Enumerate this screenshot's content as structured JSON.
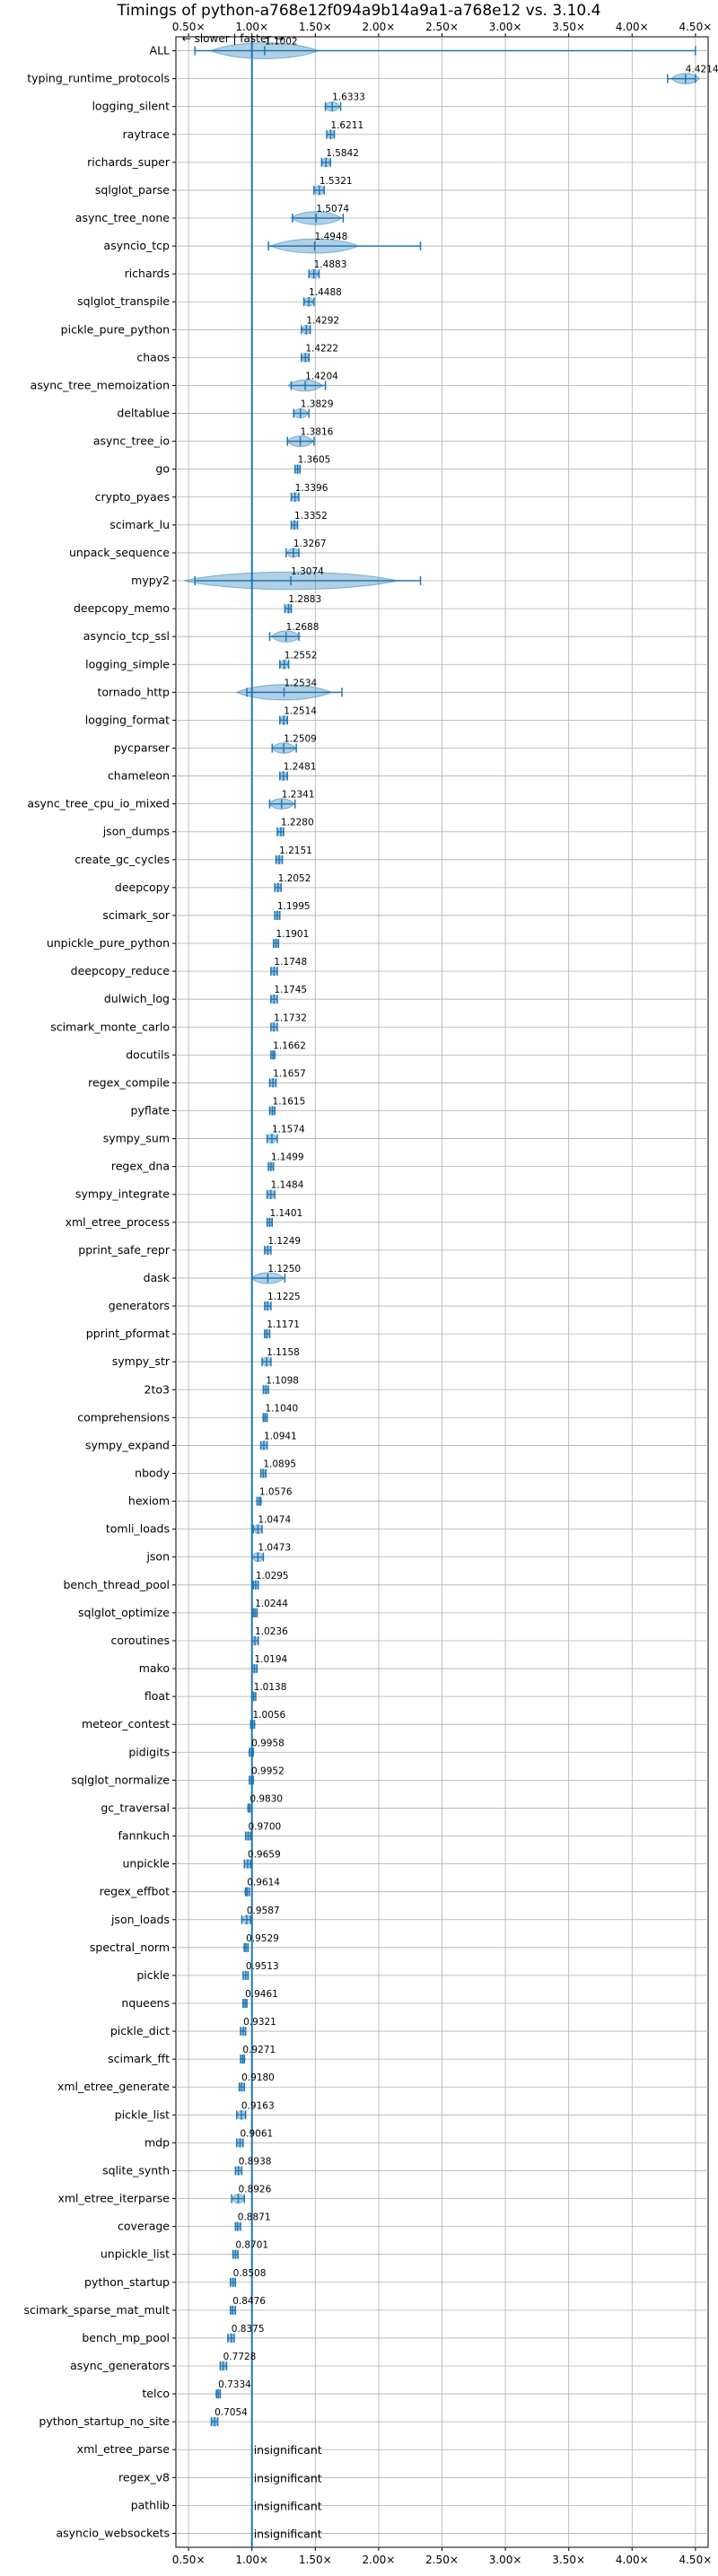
{
  "chart_data": {
    "type": "violin",
    "title": "Timings of python-a768e12f094a9b14a9a1-a768e12 vs. 3.10.4",
    "annotation": "← slower | faster →",
    "xlim": [
      0.4,
      4.6
    ],
    "xticks": [
      0.5,
      1.0,
      1.5,
      2.0,
      2.5,
      3.0,
      3.5,
      4.0,
      4.5
    ],
    "xtick_labels": [
      "0.50×",
      "1.00×",
      "1.50×",
      "2.00×",
      "2.50×",
      "3.00×",
      "3.50×",
      "4.00×",
      "4.50×"
    ],
    "grid": true,
    "series_color": "#1f77b4",
    "benchmarks": [
      {
        "name": "ALL",
        "label": "1.1002",
        "min": 0.55,
        "max": 4.5,
        "spread": 0.33
      },
      {
        "name": "typing_runtime_protocols",
        "label": "4.4214",
        "min": 4.28,
        "max": 4.5,
        "spread": 0.1
      },
      {
        "name": "logging_silent",
        "label": "1.6333",
        "min": 1.58,
        "max": 1.7,
        "spread": 0.05
      },
      {
        "name": "raytrace",
        "label": "1.6211",
        "min": 1.59,
        "max": 1.65,
        "spread": 0.03
      },
      {
        "name": "richards_super",
        "label": "1.5842",
        "min": 1.55,
        "max": 1.62,
        "spread": 0.03
      },
      {
        "name": "sqlglot_parse",
        "label": "1.5321",
        "min": 1.49,
        "max": 1.57,
        "spread": 0.04
      },
      {
        "name": "async_tree_none",
        "label": "1.5074",
        "min": 1.32,
        "max": 1.72,
        "spread": 0.2
      },
      {
        "name": "asyncio_tcp",
        "label": "1.4948",
        "min": 1.13,
        "max": 2.33,
        "spread": 0.25
      },
      {
        "name": "richards",
        "label": "1.4883",
        "min": 1.45,
        "max": 1.53,
        "spread": 0.03
      },
      {
        "name": "sqlglot_transpile",
        "label": "1.4488",
        "min": 1.41,
        "max": 1.49,
        "spread": 0.03
      },
      {
        "name": "pickle_pure_python",
        "label": "1.4292",
        "min": 1.39,
        "max": 1.46,
        "spread": 0.03
      },
      {
        "name": "chaos",
        "label": "1.4222",
        "min": 1.39,
        "max": 1.45,
        "spread": 0.03
      },
      {
        "name": "async_tree_memoization",
        "label": "1.4204",
        "min": 1.31,
        "max": 1.58,
        "spread": 0.13
      },
      {
        "name": "deltablue",
        "label": "1.3829",
        "min": 1.33,
        "max": 1.45,
        "spread": 0.05
      },
      {
        "name": "async_tree_io",
        "label": "1.3816",
        "min": 1.28,
        "max": 1.49,
        "spread": 0.1
      },
      {
        "name": "go",
        "label": "1.3605",
        "min": 1.34,
        "max": 1.38,
        "spread": 0.02
      },
      {
        "name": "crypto_pyaes",
        "label": "1.3396",
        "min": 1.31,
        "max": 1.37,
        "spread": 0.03
      },
      {
        "name": "scimark_lu",
        "label": "1.3352",
        "min": 1.31,
        "max": 1.36,
        "spread": 0.03
      },
      {
        "name": "unpack_sequence",
        "label": "1.3267",
        "min": 1.27,
        "max": 1.37,
        "spread": 0.04
      },
      {
        "name": "mypy2",
        "label": "1.3074",
        "min": 0.55,
        "max": 2.33,
        "spread": 0.75
      },
      {
        "name": "deepcopy_memo",
        "label": "1.2883",
        "min": 1.26,
        "max": 1.31,
        "spread": 0.03
      },
      {
        "name": "asyncio_tcp_ssl",
        "label": "1.2688",
        "min": 1.14,
        "max": 1.37,
        "spread": 0.12
      },
      {
        "name": "logging_simple",
        "label": "1.2552",
        "min": 1.22,
        "max": 1.29,
        "spread": 0.03
      },
      {
        "name": "tornado_http",
        "label": "1.2534",
        "min": 0.96,
        "max": 1.71,
        "spread": 0.3
      },
      {
        "name": "logging_format",
        "label": "1.2514",
        "min": 1.22,
        "max": 1.28,
        "spread": 0.03
      },
      {
        "name": "pycparser",
        "label": "1.2509",
        "min": 1.16,
        "max": 1.35,
        "spread": 0.09
      },
      {
        "name": "chameleon",
        "label": "1.2481",
        "min": 1.22,
        "max": 1.28,
        "spread": 0.03
      },
      {
        "name": "async_tree_cpu_io_mixed",
        "label": "1.2341",
        "min": 1.14,
        "max": 1.34,
        "spread": 0.1
      },
      {
        "name": "json_dumps",
        "label": "1.2280",
        "min": 1.2,
        "max": 1.25,
        "spread": 0.02
      },
      {
        "name": "create_gc_cycles",
        "label": "1.2151",
        "min": 1.19,
        "max": 1.24,
        "spread": 0.02
      },
      {
        "name": "deepcopy",
        "label": "1.2052",
        "min": 1.18,
        "max": 1.23,
        "spread": 0.02
      },
      {
        "name": "scimark_sor",
        "label": "1.1995",
        "min": 1.18,
        "max": 1.22,
        "spread": 0.02
      },
      {
        "name": "unpickle_pure_python",
        "label": "1.1901",
        "min": 1.17,
        "max": 1.21,
        "spread": 0.02
      },
      {
        "name": "deepcopy_reduce",
        "label": "1.1748",
        "min": 1.15,
        "max": 1.2,
        "spread": 0.02
      },
      {
        "name": "dulwich_log",
        "label": "1.1745",
        "min": 1.15,
        "max": 1.2,
        "spread": 0.02
      },
      {
        "name": "scimark_monte_carlo",
        "label": "1.1732",
        "min": 1.15,
        "max": 1.2,
        "spread": 0.02
      },
      {
        "name": "docutils",
        "label": "1.1662",
        "min": 1.15,
        "max": 1.18,
        "spread": 0.015
      },
      {
        "name": "regex_compile",
        "label": "1.1657",
        "min": 1.14,
        "max": 1.19,
        "spread": 0.02
      },
      {
        "name": "pyflate",
        "label": "1.1615",
        "min": 1.14,
        "max": 1.18,
        "spread": 0.02
      },
      {
        "name": "sympy_sum",
        "label": "1.1574",
        "min": 1.12,
        "max": 1.2,
        "spread": 0.04
      },
      {
        "name": "regex_dna",
        "label": "1.1499",
        "min": 1.13,
        "max": 1.17,
        "spread": 0.015
      },
      {
        "name": "sympy_integrate",
        "label": "1.1484",
        "min": 1.12,
        "max": 1.18,
        "spread": 0.03
      },
      {
        "name": "xml_etree_process",
        "label": "1.1401",
        "min": 1.12,
        "max": 1.16,
        "spread": 0.02
      },
      {
        "name": "pprint_safe_repr",
        "label": "1.1249",
        "min": 1.1,
        "max": 1.15,
        "spread": 0.02
      },
      {
        "name": "dask",
        "label": "1.1250",
        "min": 1.0,
        "max": 1.26,
        "spread": 0.12
      },
      {
        "name": "generators",
        "label": "1.1225",
        "min": 1.1,
        "max": 1.15,
        "spread": 0.02
      },
      {
        "name": "pprint_pformat",
        "label": "1.1171",
        "min": 1.1,
        "max": 1.14,
        "spread": 0.015
      },
      {
        "name": "sympy_str",
        "label": "1.1158",
        "min": 1.08,
        "max": 1.15,
        "spread": 0.03
      },
      {
        "name": "2to3",
        "label": "1.1098",
        "min": 1.09,
        "max": 1.13,
        "spread": 0.015
      },
      {
        "name": "comprehensions",
        "label": "1.1040",
        "min": 1.09,
        "max": 1.12,
        "spread": 0.015
      },
      {
        "name": "sympy_expand",
        "label": "1.0941",
        "min": 1.07,
        "max": 1.12,
        "spread": 0.02
      },
      {
        "name": "nbody",
        "label": "1.0895",
        "min": 1.07,
        "max": 1.11,
        "spread": 0.02
      },
      {
        "name": "hexiom",
        "label": "1.0576",
        "min": 1.04,
        "max": 1.07,
        "spread": 0.015
      },
      {
        "name": "tomli_loads",
        "label": "1.0474",
        "min": 1.01,
        "max": 1.08,
        "spread": 0.035
      },
      {
        "name": "json",
        "label": "1.0473",
        "min": 1.0,
        "max": 1.09,
        "spread": 0.04
      },
      {
        "name": "bench_thread_pool",
        "label": "1.0295",
        "min": 1.01,
        "max": 1.05,
        "spread": 0.015
      },
      {
        "name": "sqlglot_optimize",
        "label": "1.0244",
        "min": 1.01,
        "max": 1.04,
        "spread": 0.015
      },
      {
        "name": "coroutines",
        "label": "1.0236",
        "min": 1.0,
        "max": 1.05,
        "spread": 0.02
      },
      {
        "name": "mako",
        "label": "1.0194",
        "min": 1.0,
        "max": 1.04,
        "spread": 0.015
      },
      {
        "name": "float",
        "label": "1.0138",
        "min": 1.0,
        "max": 1.03,
        "spread": 0.015
      },
      {
        "name": "meteor_contest",
        "label": "1.0056",
        "min": 0.99,
        "max": 1.02,
        "spread": 0.01
      },
      {
        "name": "pidigits",
        "label": "0.9958",
        "min": 0.98,
        "max": 1.01,
        "spread": 0.01
      },
      {
        "name": "sqlglot_normalize",
        "label": "0.9952",
        "min": 0.98,
        "max": 1.01,
        "spread": 0.01
      },
      {
        "name": "gc_traversal",
        "label": "0.9830",
        "min": 0.97,
        "max": 1.0,
        "spread": 0.01
      },
      {
        "name": "fannkuch",
        "label": "0.9700",
        "min": 0.95,
        "max": 0.99,
        "spread": 0.015
      },
      {
        "name": "unpickle",
        "label": "0.9659",
        "min": 0.94,
        "max": 0.99,
        "spread": 0.02
      },
      {
        "name": "regex_effbot",
        "label": "0.9614",
        "min": 0.95,
        "max": 0.98,
        "spread": 0.01
      },
      {
        "name": "json_loads",
        "label": "0.9587",
        "min": 0.92,
        "max": 0.99,
        "spread": 0.03
      },
      {
        "name": "spectral_norm",
        "label": "0.9529",
        "min": 0.94,
        "max": 0.97,
        "spread": 0.01
      },
      {
        "name": "pickle",
        "label": "0.9513",
        "min": 0.93,
        "max": 0.97,
        "spread": 0.02
      },
      {
        "name": "nqueens",
        "label": "0.9461",
        "min": 0.93,
        "max": 0.96,
        "spread": 0.01
      },
      {
        "name": "pickle_dict",
        "label": "0.9321",
        "min": 0.91,
        "max": 0.95,
        "spread": 0.015
      },
      {
        "name": "scimark_fft",
        "label": "0.9271",
        "min": 0.91,
        "max": 0.94,
        "spread": 0.01
      },
      {
        "name": "xml_etree_generate",
        "label": "0.9180",
        "min": 0.9,
        "max": 0.94,
        "spread": 0.015
      },
      {
        "name": "pickle_list",
        "label": "0.9163",
        "min": 0.88,
        "max": 0.95,
        "spread": 0.03
      },
      {
        "name": "mdp",
        "label": "0.9061",
        "min": 0.88,
        "max": 0.93,
        "spread": 0.02
      },
      {
        "name": "sqlite_synth",
        "label": "0.8938",
        "min": 0.87,
        "max": 0.92,
        "spread": 0.02
      },
      {
        "name": "xml_etree_iterparse",
        "label": "0.8926",
        "min": 0.84,
        "max": 0.94,
        "spread": 0.04
      },
      {
        "name": "coverage",
        "label": "0.8871",
        "min": 0.87,
        "max": 0.91,
        "spread": 0.015
      },
      {
        "name": "unpickle_list",
        "label": "0.8701",
        "min": 0.85,
        "max": 0.89,
        "spread": 0.015
      },
      {
        "name": "python_startup",
        "label": "0.8508",
        "min": 0.83,
        "max": 0.87,
        "spread": 0.015
      },
      {
        "name": "scimark_sparse_mat_mult",
        "label": "0.8476",
        "min": 0.83,
        "max": 0.87,
        "spread": 0.01
      },
      {
        "name": "bench_mp_pool",
        "label": "0.8375",
        "min": 0.81,
        "max": 0.86,
        "spread": 0.02
      },
      {
        "name": "async_generators",
        "label": "0.7728",
        "min": 0.75,
        "max": 0.8,
        "spread": 0.02
      },
      {
        "name": "telco",
        "label": "0.7334",
        "min": 0.72,
        "max": 0.75,
        "spread": 0.01
      },
      {
        "name": "python_startup_no_site",
        "label": "0.7054",
        "min": 0.68,
        "max": 0.73,
        "spread": 0.02
      },
      {
        "name": "xml_etree_parse",
        "label": "insignificant"
      },
      {
        "name": "regex_v8",
        "label": "insignificant"
      },
      {
        "name": "pathlib",
        "label": "insignificant"
      },
      {
        "name": "asyncio_websockets",
        "label": "insignificant"
      }
    ]
  }
}
